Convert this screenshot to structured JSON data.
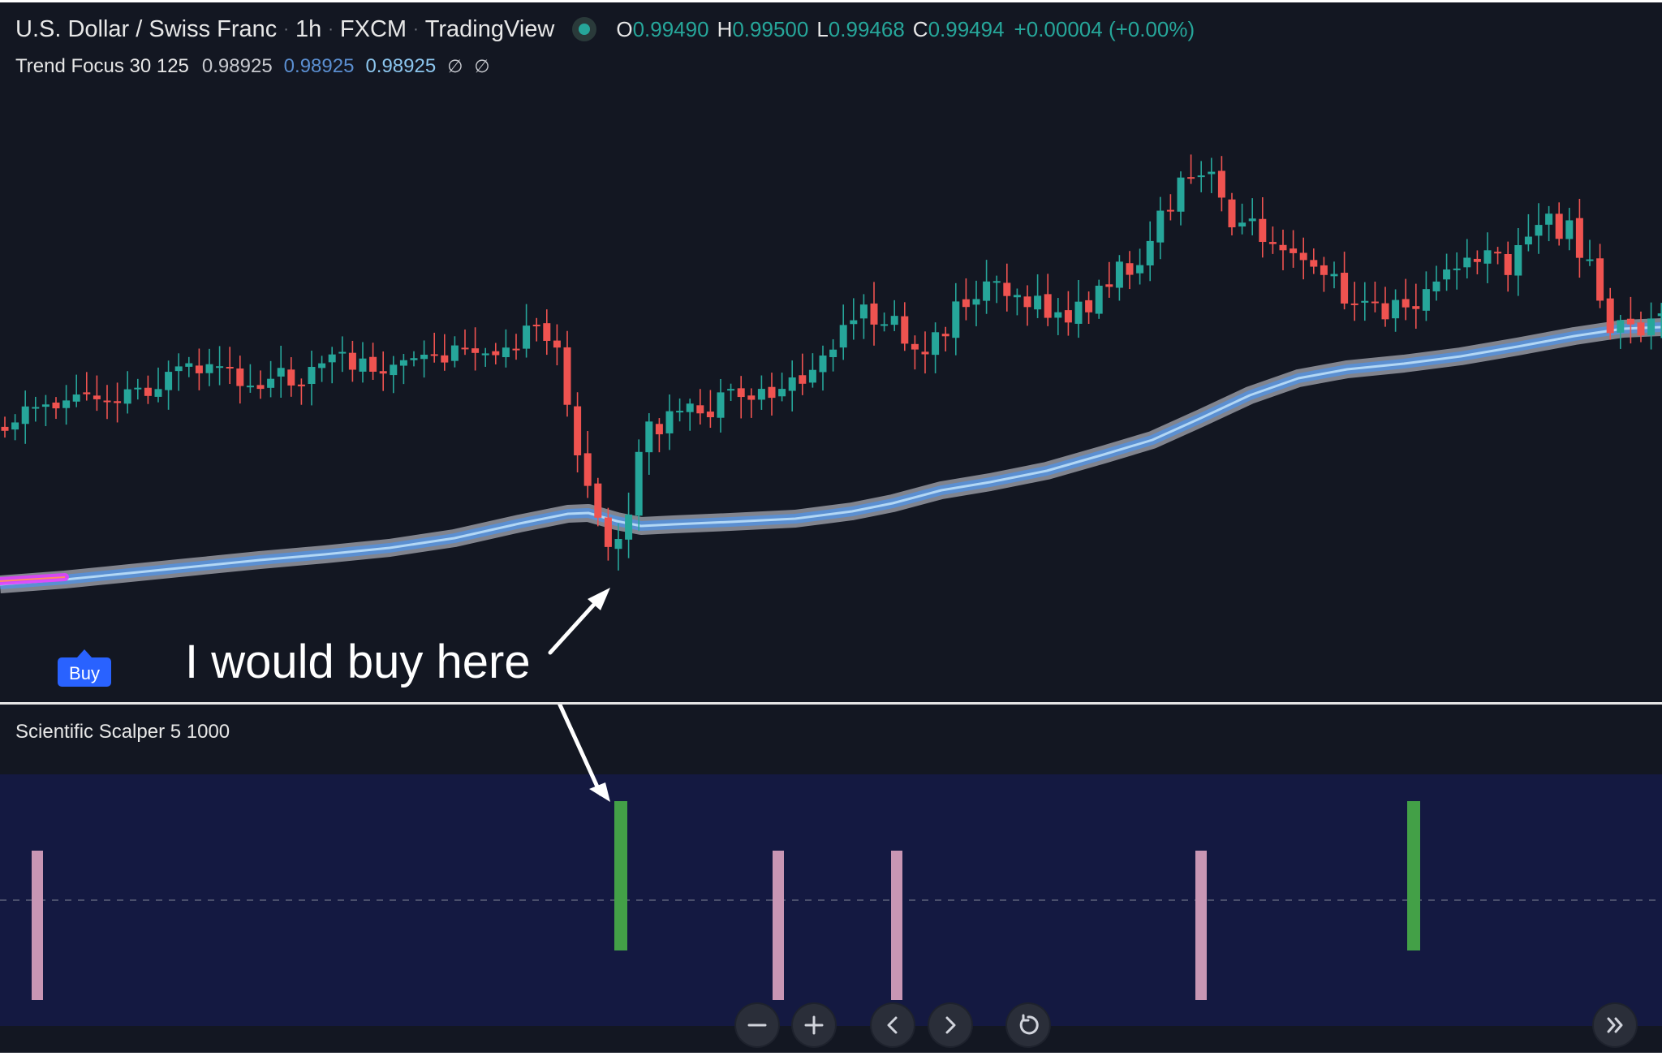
{
  "header": {
    "symbol": "U.S. Dollar / Swiss Franc",
    "interval": "1h",
    "exchange": "FXCM",
    "source": "TradingView",
    "market_status_color": "#26a69a",
    "ohlc": {
      "o_label": "O",
      "o": "0.99490",
      "h_label": "H",
      "h": "0.99500",
      "l_label": "L",
      "l": "0.99468",
      "c_label": "C",
      "c": "0.99494",
      "change": "+0.00004 (+0.00%)"
    }
  },
  "indicator": {
    "name": "Trend Focus 30 125",
    "values": [
      "0.98925",
      "0.98925",
      "0.98925"
    ],
    "value_colors": [
      "#c7c9cf",
      "#5b8fd1",
      "#8cc6ee"
    ],
    "extra_glyphs": [
      "∅",
      "∅"
    ]
  },
  "annotation": {
    "text": "I would buy here",
    "buy_badge": "Buy"
  },
  "oscillator": {
    "title": "Scientific Scalper 5 1000",
    "signals": [
      {
        "type": "pink",
        "strength": 1
      },
      {
        "type": "green",
        "strength": 1
      },
      {
        "type": "pink",
        "strength": 1
      },
      {
        "type": "pink",
        "strength": 1
      },
      {
        "type": "pink",
        "strength": 1
      },
      {
        "type": "green",
        "strength": 1
      }
    ]
  },
  "controls": {
    "zoom_out": "minus-icon",
    "zoom_in": "plus-icon",
    "scroll_left": "chevron-left-icon",
    "scroll_right": "chevron-right-icon",
    "reset": "reset-icon",
    "go_to_realtime": "double-chevron-right-icon"
  },
  "colors": {
    "background": "#131722",
    "up": "#26a69a",
    "down": "#ef5350",
    "ribbon_outer": "#9598a1",
    "ribbon_mid": "#5b8fd1",
    "ribbon_inner": "#b2d7f5",
    "oscillator_bg": "#141941",
    "signal_green": "#43a047",
    "signal_pink": "#c896b4"
  }
}
